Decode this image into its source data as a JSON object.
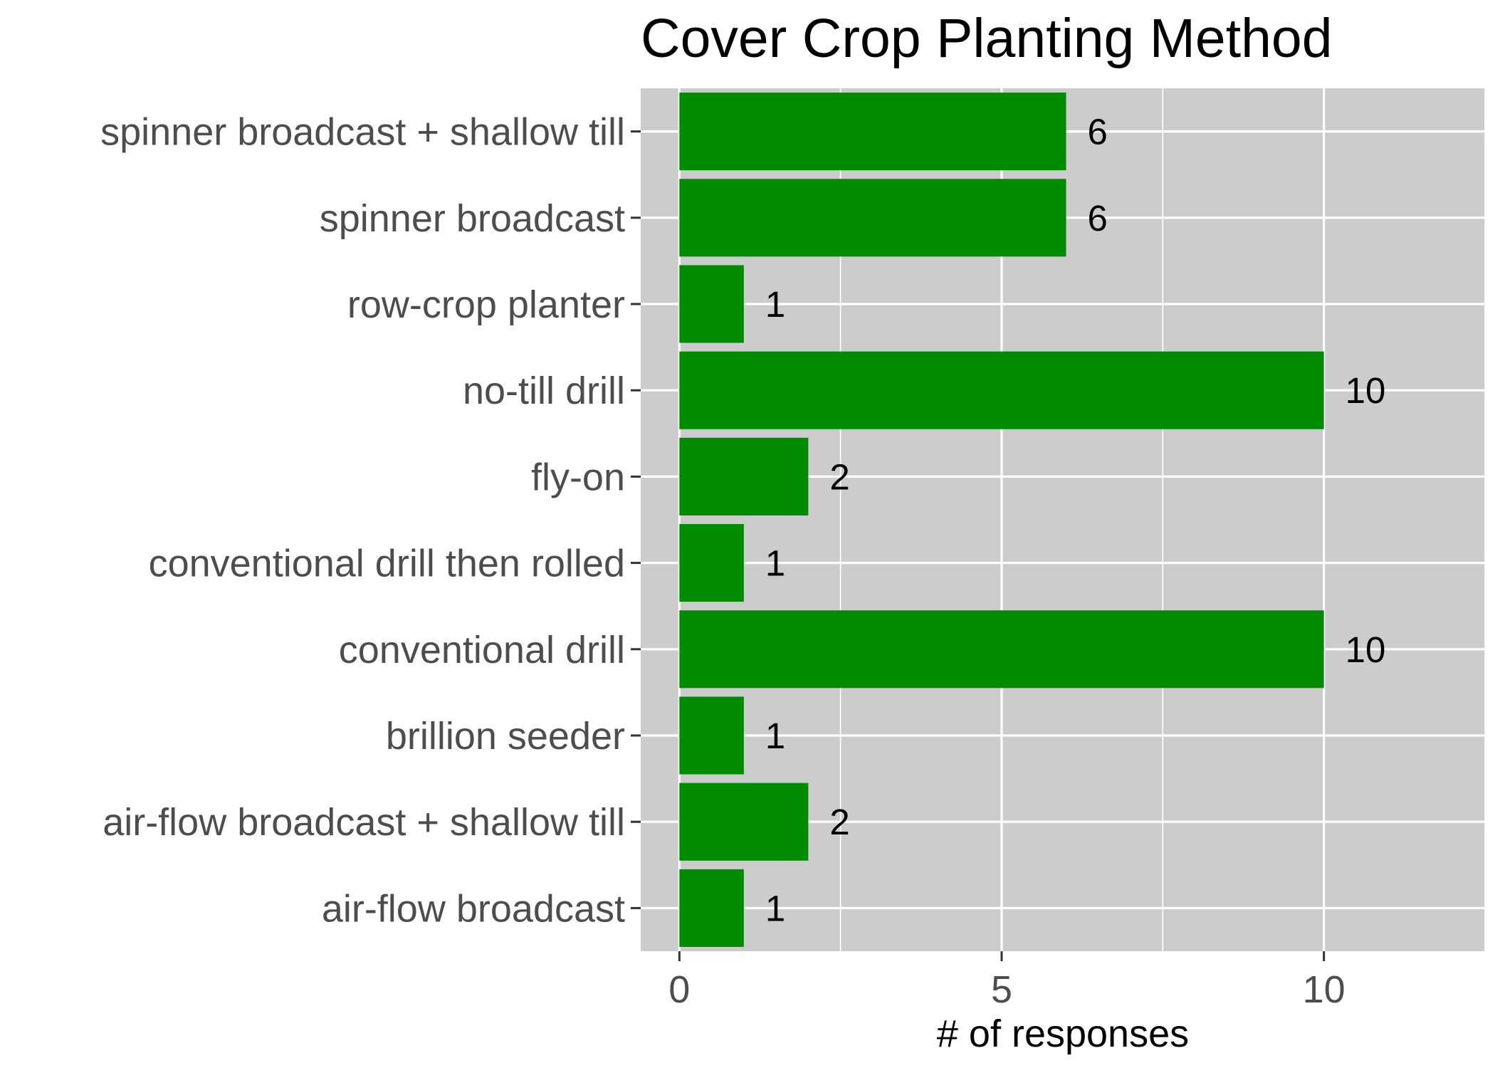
{
  "chart_data": {
    "type": "bar",
    "orientation": "horizontal",
    "title": "Cover Crop Planting Method",
    "xlabel": "# of responses",
    "ylabel": "",
    "categories": [
      "air-flow broadcast",
      "air-flow broadcast + shallow till",
      "brillion seeder",
      "conventional drill",
      "conventional drill then rolled",
      "fly-on",
      "no-till drill",
      "row-crop planter",
      "spinner broadcast",
      "spinner broadcast + shallow till"
    ],
    "values": [
      1,
      2,
      1,
      10,
      1,
      2,
      10,
      1,
      6,
      6
    ],
    "xlim": [
      -0.6,
      12.5
    ],
    "xticks": [
      0,
      5,
      10
    ],
    "grid": true,
    "legend": "none",
    "colors": {
      "bar": "#008b00",
      "panel": "#cccccc",
      "grid": "#ffffff"
    }
  }
}
